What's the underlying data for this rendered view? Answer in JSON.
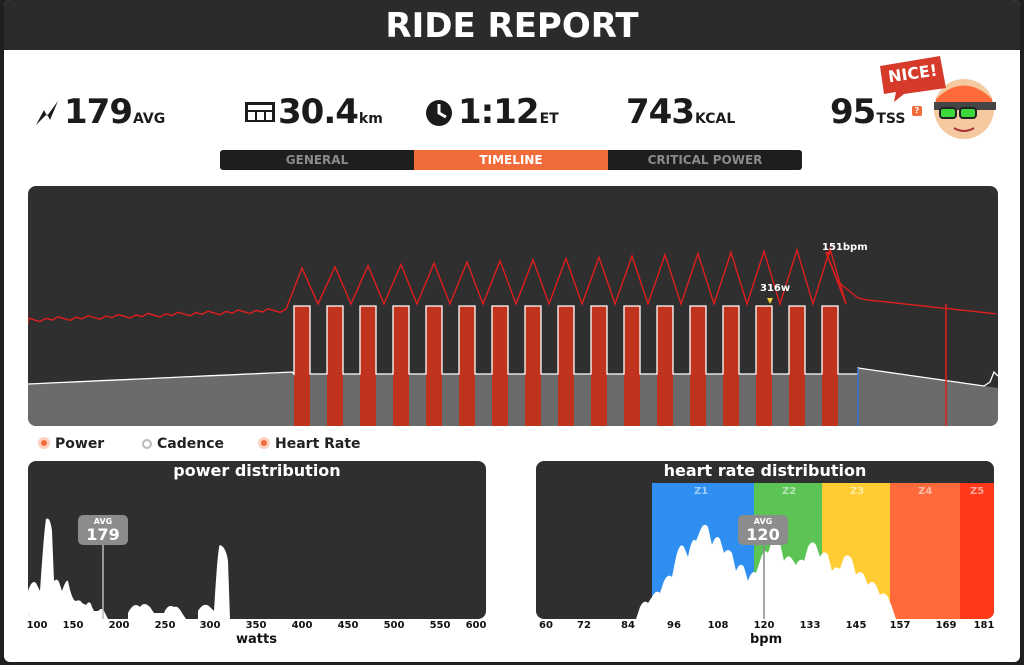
{
  "header": {
    "title": "RIDE REPORT"
  },
  "stats": {
    "power": {
      "value": "179",
      "unit": "AVG",
      "icon": "lightning-icon"
    },
    "distance": {
      "value": "30.4",
      "unit": "km",
      "icon": "odometer-icon"
    },
    "time": {
      "value": "1:12",
      "unit": "ET",
      "icon": "clock-icon"
    },
    "calories": {
      "value": "743",
      "unit": "KCAL"
    },
    "tss": {
      "value": "95",
      "unit": "TSS",
      "badge": "?"
    }
  },
  "avatar": {
    "bubble": "NICE!"
  },
  "tabs": [
    {
      "label": "GENERAL"
    },
    {
      "label": "TIMELINE",
      "active": true
    },
    {
      "label": "CRITICAL POWER"
    }
  ],
  "timeline": {
    "power_peak_label": "316w",
    "hr_peak_label": "151bpm",
    "colors": {
      "power": "#c0341d",
      "heart": "#e01e1e",
      "cadence": "#ffffff",
      "base": "#6b6b6b"
    }
  },
  "legend": [
    {
      "label": "Power",
      "color": "#f26b3a"
    },
    {
      "label": "Cadence",
      "color": "#ffffff"
    },
    {
      "label": "Heart Rate",
      "color": "#f26b3a"
    }
  ],
  "power_distribution": {
    "title": "power distribution",
    "avg_label": "AVG",
    "avg_value": "179",
    "axis_label": "watts",
    "ticks": [
      "100",
      "150",
      "200",
      "250",
      "300",
      "350",
      "400",
      "450",
      "500",
      "550",
      "600"
    ]
  },
  "hr_distribution": {
    "title": "heart rate distribution",
    "avg_label": "AVG",
    "avg_value": "120",
    "axis_label": "bpm",
    "zones": [
      "Z1",
      "Z2",
      "Z3",
      "Z4",
      "Z5"
    ],
    "zone_colors": [
      "#2f8ff0",
      "#5cc455",
      "#ffcc33",
      "#ff6a3a",
      "#ff3a1a"
    ],
    "ticks": [
      "60",
      "72",
      "84",
      "96",
      "108",
      "120",
      "133",
      "145",
      "157",
      "169",
      "181"
    ]
  }
}
